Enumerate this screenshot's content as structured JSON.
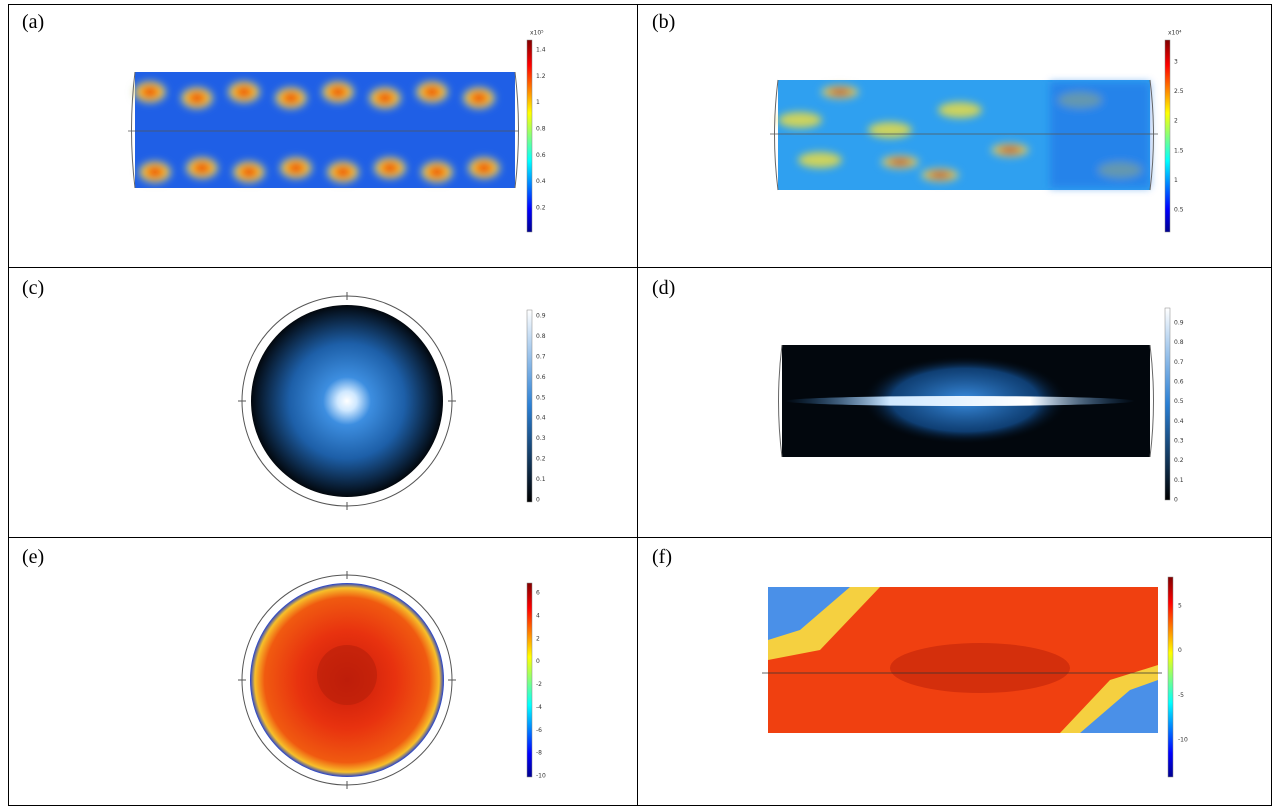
{
  "panels": [
    {
      "label": "(a)",
      "colorbar": {
        "exponent": "x10⁵",
        "ticks": [
          1.4,
          1.2,
          1,
          0.8,
          0.6,
          0.4,
          0.2
        ]
      }
    },
    {
      "label": "(b)",
      "colorbar": {
        "exponent": "x10⁴",
        "ticks": [
          3,
          2.5,
          2,
          1.5,
          1,
          0.5
        ]
      }
    },
    {
      "label": "(c)",
      "colorbar": {
        "ticks": [
          0.9,
          0.8,
          0.7,
          0.6,
          0.5,
          0.4,
          0.3,
          0.2,
          0.1,
          0
        ]
      }
    },
    {
      "label": "(d)",
      "colorbar": {
        "ticks": [
          0.9,
          0.8,
          0.7,
          0.6,
          0.5,
          0.4,
          0.3,
          0.2,
          0.1,
          0
        ]
      }
    },
    {
      "label": "(e)",
      "colorbar": {
        "ticks": [
          6,
          4,
          2,
          0,
          -2,
          -4,
          -6,
          -8,
          -10
        ]
      }
    },
    {
      "label": "(f)",
      "colorbar": {
        "ticks": [
          5,
          0,
          -5,
          -10
        ]
      }
    }
  ]
}
